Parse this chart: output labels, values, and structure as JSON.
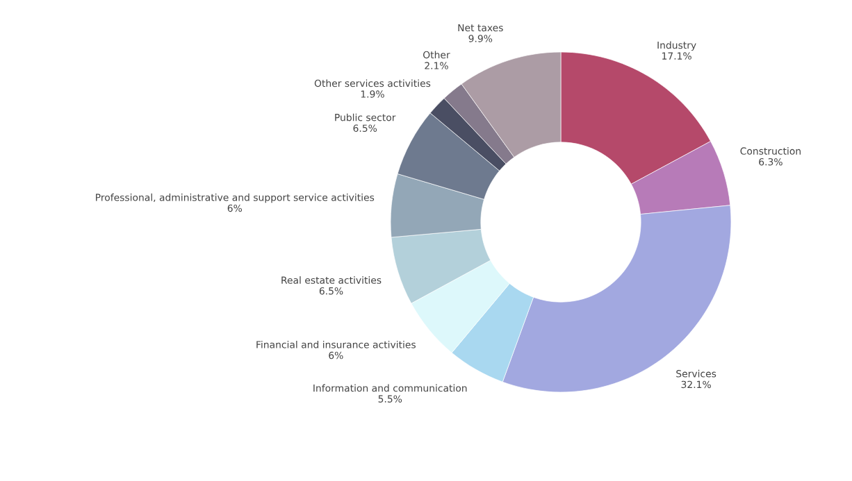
{
  "chart_data": {
    "type": "donut",
    "categories": [
      "Industry",
      "Construction",
      "Services",
      "Information and communication",
      "Financial and insurance activities",
      "Real estate activities",
      "Professional, administrative and support service activities",
      "Public sector",
      "Other services activities",
      "Other",
      "Net taxes"
    ],
    "values": [
      17.1,
      6.3,
      32.1,
      5.5,
      6,
      6.5,
      6,
      6.5,
      1.9,
      2.1,
      9.9
    ],
    "value_labels": [
      "17.1%",
      "6.3%",
      "32.1%",
      "5.5%",
      "6%",
      "6.5%",
      "6%",
      "6.5%",
      "1.9%",
      "2.1%",
      "9.9%"
    ],
    "colors": [
      "#b5496a",
      "#b77bb8",
      "#a2a8e0",
      "#a9d8f0",
      "#ddf8fb",
      "#b3d0da",
      "#93a7b7",
      "#6e7a8f",
      "#4a4e63",
      "#857a8c",
      "#ac9ca5"
    ],
    "legend": false
  }
}
